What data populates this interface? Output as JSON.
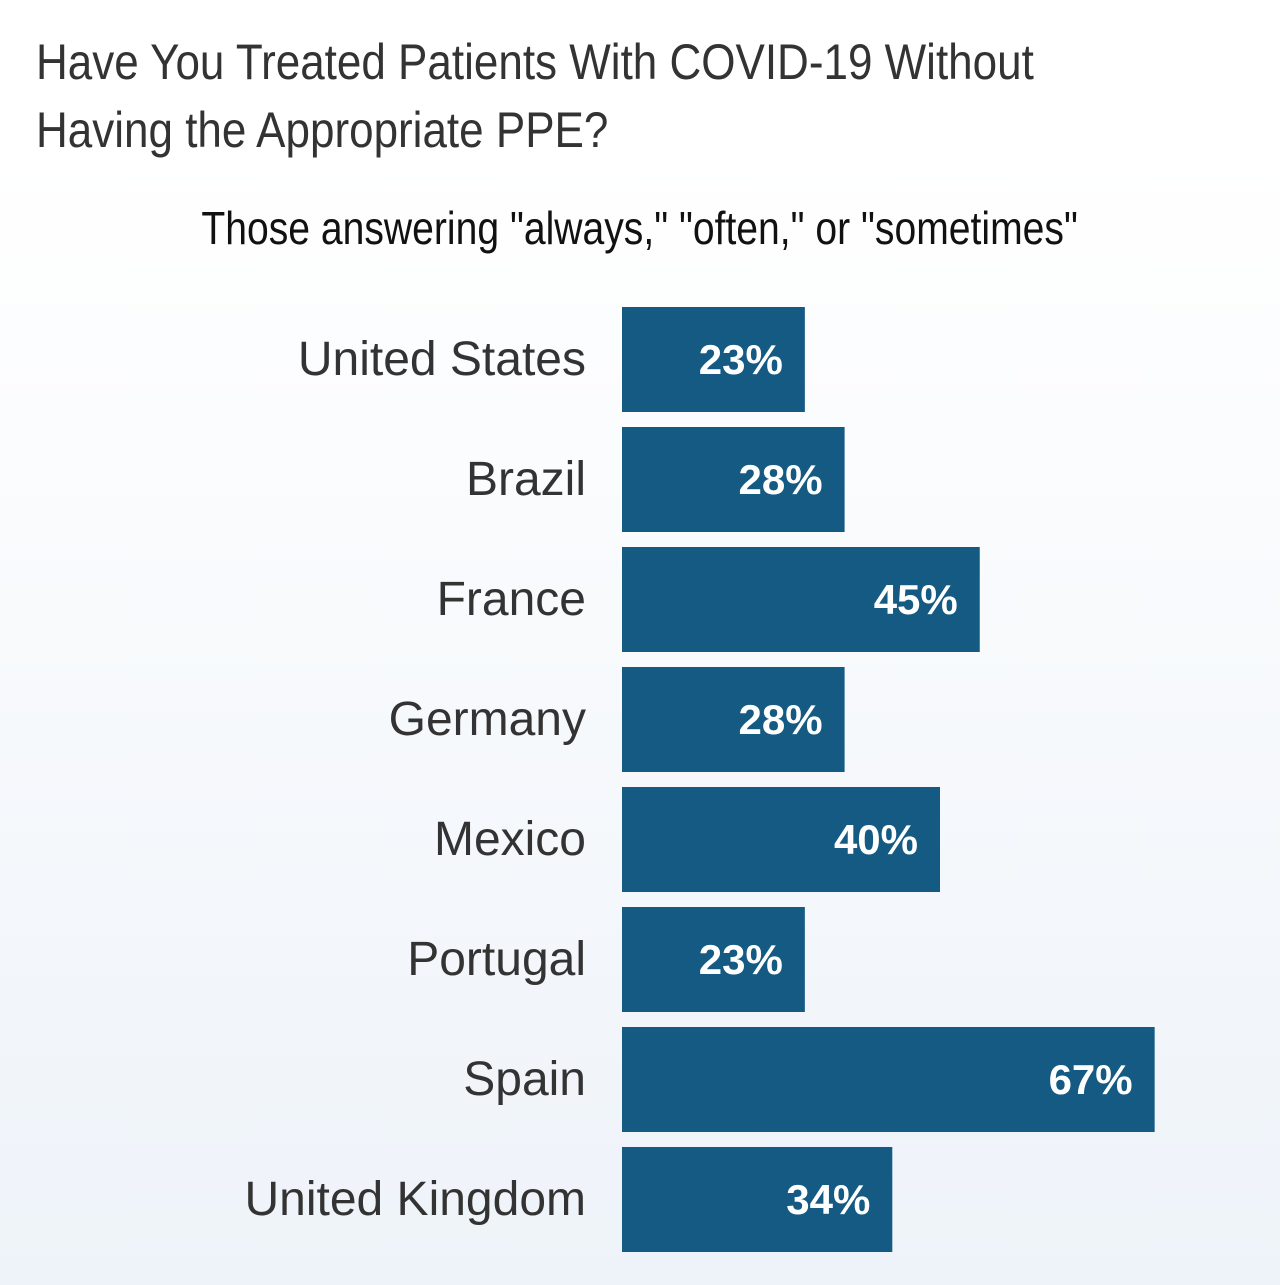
{
  "title": "Have You Treated Patients With COVID-19 Without\nHaving the Appropriate PPE?",
  "subtitle": "Those answering \"always,\" \"often,\" or \"sometimes\"",
  "colors": {
    "bar": "#145a82",
    "label": "#333333",
    "value_text": "#ffffff"
  },
  "chart_data": {
    "type": "bar",
    "orientation": "horizontal",
    "categories": [
      "United States",
      "Brazil",
      "France",
      "Germany",
      "Mexico",
      "Portugal",
      "Spain",
      "United Kingdom"
    ],
    "values": [
      23,
      28,
      45,
      28,
      40,
      23,
      67,
      34
    ],
    "value_labels": [
      "23%",
      "28%",
      "45%",
      "28%",
      "40%",
      "23%",
      "67%",
      "34%"
    ],
    "unit": "%",
    "xlim": [
      0,
      100
    ],
    "grid": false,
    "legend": "none"
  }
}
